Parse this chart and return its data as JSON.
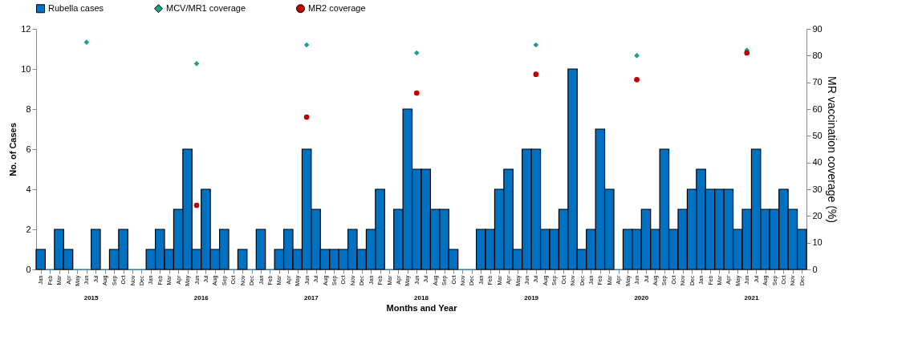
{
  "chart_data": {
    "type": "bar",
    "xlabel": "Months and Year",
    "ylabel": "No. of Cases",
    "y2label": "MR vaccination coverage (%)",
    "categories": [
      "Jan",
      "Feb",
      "Mar",
      "Apr",
      "May",
      "Jun",
      "Jul",
      "Aug",
      "Sep",
      "Oct",
      "Nov",
      "Dec",
      "Jan",
      "Feb",
      "Mar",
      "Apr",
      "May",
      "Jun",
      "Jul",
      "Aug",
      "Sep",
      "Oct",
      "Nov",
      "Dec",
      "Jan",
      "Feb",
      "Mar",
      "Apr",
      "May",
      "Jun",
      "Jul",
      "Aug",
      "Sep",
      "Oct",
      "Nov",
      "Dec",
      "Jan",
      "Feb",
      "Mar",
      "Apr",
      "May",
      "Jun",
      "Jul",
      "Aug",
      "Sep",
      "Oct",
      "Nov",
      "Dec",
      "Jan",
      "Feb",
      "Mar",
      "Apr",
      "May",
      "Jun",
      "Jul",
      "Aug",
      "Sep",
      "Oct",
      "Nov",
      "Dec",
      "Jan",
      "Feb",
      "Mar",
      "Apr",
      "May",
      "Jun",
      "Jul",
      "Aug",
      "Sep",
      "Oct",
      "Nov",
      "Dec",
      "Jan",
      "Feb",
      "Mar",
      "Apr",
      "May",
      "Jun",
      "Jul",
      "Aug",
      "Sep",
      "Oct",
      "Nov",
      "Dec"
    ],
    "series": [
      {
        "name": "Rubella cases",
        "color": "#0070c0",
        "values": [
          1,
          0,
          2,
          1,
          0,
          0,
          2,
          0,
          1,
          2,
          0,
          0,
          1,
          2,
          1,
          3,
          6,
          1,
          4,
          1,
          2,
          0,
          1,
          0,
          2,
          0,
          1,
          2,
          1,
          6,
          3,
          1,
          1,
          1,
          2,
          1,
          2,
          4,
          0,
          3,
          8,
          5,
          5,
          3,
          3,
          1,
          0,
          0,
          2,
          2,
          4,
          5,
          1,
          6,
          6,
          2,
          2,
          3,
          10,
          1,
          2,
          7,
          4,
          0,
          2,
          2,
          3,
          2,
          6,
          2,
          3,
          4,
          5,
          4,
          4,
          4,
          2,
          3,
          6,
          3,
          3,
          4,
          3,
          2
        ]
      },
      {
        "name": "MCV/MR1 coverage",
        "type": "scatter",
        "axis": "y2",
        "marker": "diamond",
        "color": "#1f9e8a",
        "values": [
          null,
          null,
          null,
          null,
          null,
          85,
          null,
          null,
          null,
          null,
          null,
          null,
          null,
          null,
          null,
          null,
          null,
          77,
          null,
          null,
          null,
          null,
          null,
          null,
          null,
          null,
          null,
          null,
          null,
          84,
          null,
          null,
          null,
          null,
          null,
          null,
          null,
          null,
          null,
          null,
          null,
          81,
          null,
          null,
          null,
          null,
          null,
          null,
          null,
          null,
          null,
          null,
          null,
          null,
          84,
          null,
          null,
          null,
          null,
          null,
          null,
          null,
          null,
          null,
          null,
          80,
          null,
          null,
          null,
          null,
          null,
          null,
          null,
          null,
          null,
          null,
          null,
          82,
          null,
          null,
          null,
          null,
          null,
          null
        ]
      },
      {
        "name": "MR2 coverage",
        "type": "scatter",
        "axis": "y2",
        "marker": "circle",
        "color": "#c00000",
        "values": [
          null,
          null,
          null,
          null,
          null,
          null,
          null,
          null,
          null,
          null,
          null,
          null,
          null,
          null,
          null,
          null,
          null,
          24,
          null,
          null,
          null,
          null,
          null,
          null,
          null,
          null,
          null,
          null,
          null,
          57,
          null,
          null,
          null,
          null,
          null,
          null,
          null,
          null,
          null,
          null,
          null,
          66,
          null,
          null,
          null,
          null,
          null,
          null,
          null,
          null,
          null,
          null,
          null,
          null,
          73,
          null,
          null,
          null,
          null,
          null,
          null,
          null,
          null,
          null,
          null,
          71,
          null,
          null,
          null,
          null,
          null,
          null,
          null,
          null,
          null,
          null,
          null,
          81,
          null,
          null,
          null,
          null,
          null,
          null
        ]
      }
    ],
    "ylim": [
      0,
      12
    ],
    "yticks": [
      0,
      2,
      4,
      6,
      8,
      10,
      12
    ],
    "y2lim": [
      0,
      90
    ],
    "y2ticks": [
      0,
      10,
      20,
      30,
      40,
      50,
      60,
      70,
      80,
      90
    ],
    "annotations": [
      "2015",
      "2016",
      "2017",
      "2018",
      "2019",
      "2020",
      "2021"
    ],
    "legend": "top",
    "grid": false
  }
}
